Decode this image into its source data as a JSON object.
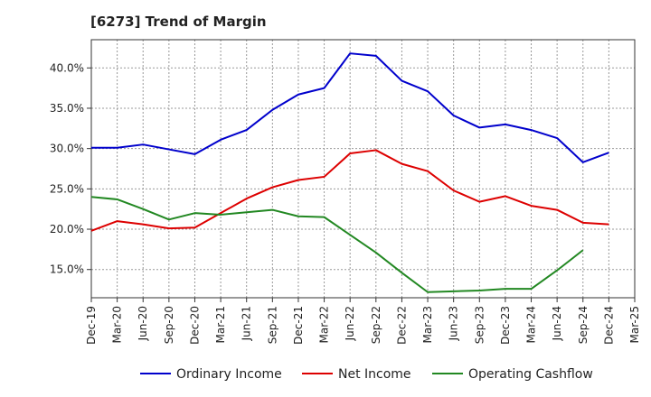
{
  "chart_data": {
    "type": "line",
    "title": "[6273]  Trend of Margin",
    "xlabel": "",
    "ylabel": "",
    "ylim": [
      11.5,
      43.5
    ],
    "yticks": [
      15,
      20,
      25,
      30,
      35,
      40
    ],
    "ytick_labels": [
      "15.0%",
      "20.0%",
      "25.0%",
      "30.0%",
      "35.0%",
      "40.0%"
    ],
    "grid": true,
    "legend_position": "bottom",
    "categories": [
      "Dec-19",
      "Mar-20",
      "Jun-20",
      "Sep-20",
      "Dec-20",
      "Mar-21",
      "Jun-21",
      "Sep-21",
      "Dec-21",
      "Mar-22",
      "Jun-22",
      "Sep-22",
      "Dec-22",
      "Mar-23",
      "Jun-23",
      "Sep-23",
      "Dec-23",
      "Mar-24",
      "Jun-24",
      "Sep-24",
      "Dec-24",
      "Mar-25"
    ],
    "series": [
      {
        "name": "Ordinary Income",
        "color": "#0000cc",
        "values": [
          30.1,
          30.1,
          30.5,
          29.9,
          29.3,
          31.1,
          32.3,
          34.8,
          36.7,
          37.5,
          41.8,
          41.5,
          38.4,
          37.1,
          34.1,
          32.6,
          33.0,
          32.3,
          31.3,
          28.3,
          29.5,
          null
        ]
      },
      {
        "name": "Net Income",
        "color": "#dd0000",
        "values": [
          19.8,
          21.0,
          20.6,
          20.1,
          20.2,
          22.0,
          23.8,
          25.2,
          26.1,
          26.5,
          29.4,
          29.8,
          28.1,
          27.2,
          24.8,
          23.4,
          24.1,
          22.9,
          22.4,
          20.8,
          20.6,
          null
        ]
      },
      {
        "name": "Operating Cashflow",
        "color": "#228822",
        "values": [
          24.0,
          23.7,
          22.5,
          21.2,
          22.0,
          21.8,
          22.1,
          22.4,
          21.6,
          21.5,
          19.3,
          17.1,
          14.6,
          12.2,
          12.3,
          12.4,
          12.6,
          12.6,
          14.9,
          17.4,
          null,
          null
        ]
      }
    ]
  }
}
